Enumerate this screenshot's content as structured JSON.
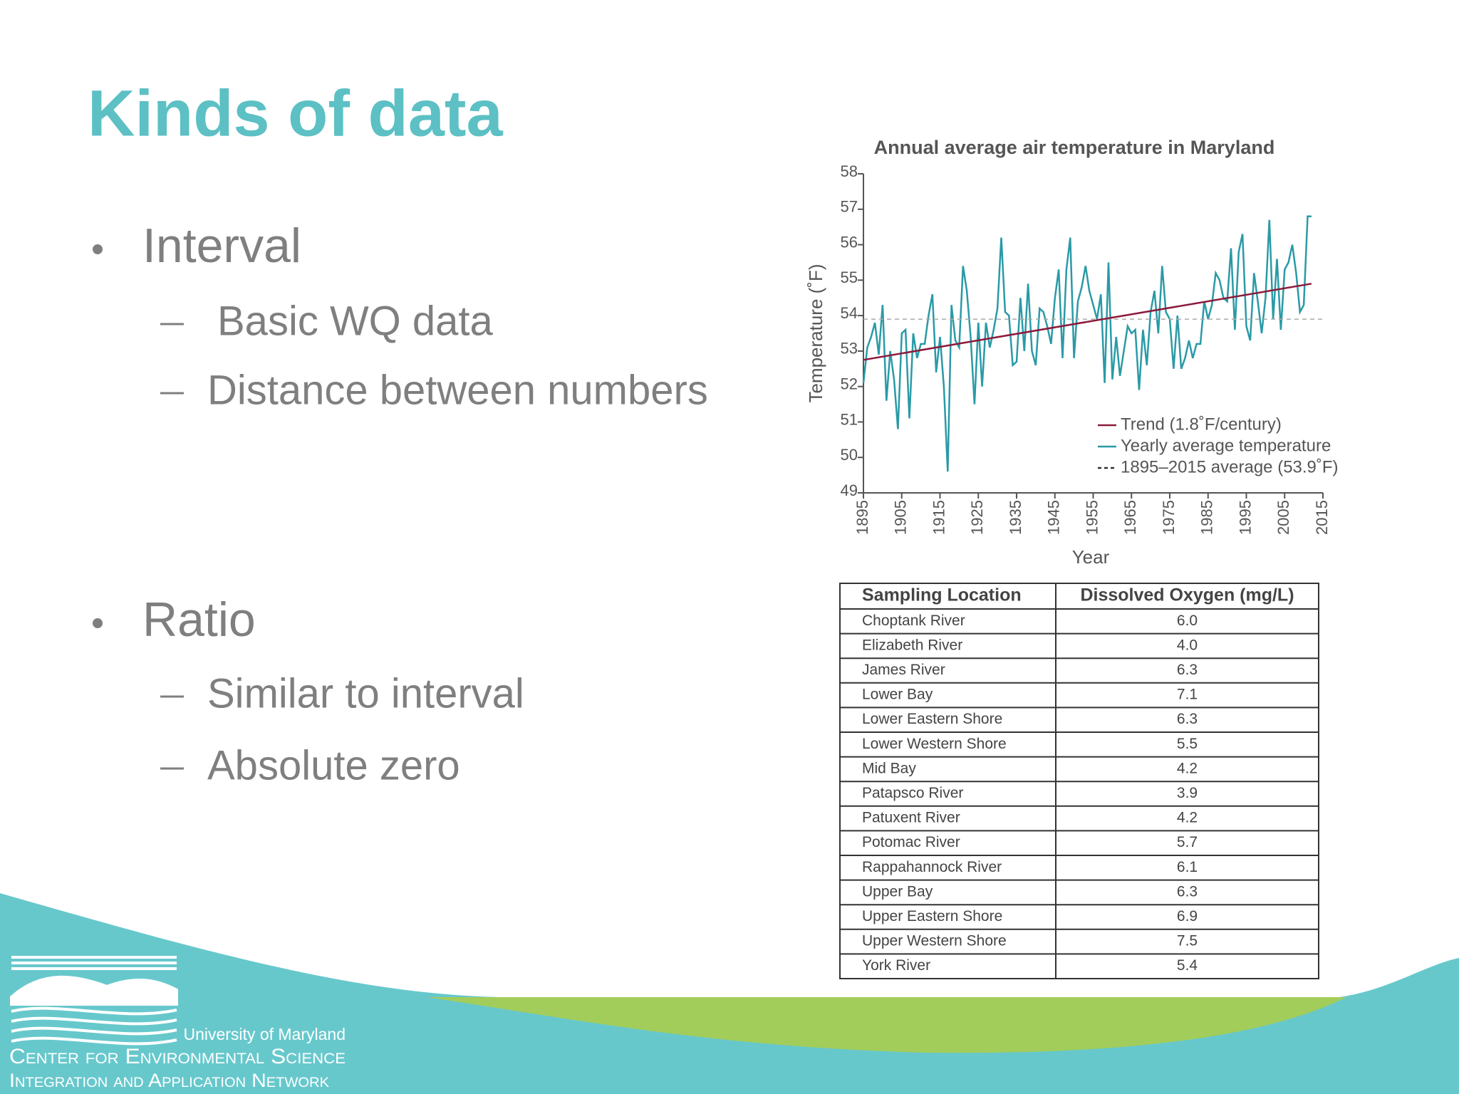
{
  "title": "Kinds of data",
  "bullets": [
    {
      "text": "Interval",
      "sub": [
        "Basic WQ data",
        "Distance between numbers"
      ]
    },
    {
      "text": "Ratio",
      "sub": [
        "Similar to interval",
        "Absolute zero"
      ]
    }
  ],
  "chart_data": {
    "type": "line",
    "title": "Annual average air temperature in Maryland",
    "x_label": "Year",
    "y_label": "Temperature (˚F)",
    "xlim": [
      1895,
      2015
    ],
    "xticks": [
      1895,
      1905,
      1915,
      1925,
      1935,
      1945,
      1955,
      1965,
      1975,
      1985,
      1995,
      2005,
      2015
    ],
    "ylim": [
      49,
      58
    ],
    "yticks": [
      49,
      50,
      51,
      52,
      53,
      54,
      55,
      56,
      57,
      58
    ],
    "series": [
      {
        "name": "Trend (1.8˚F/century)",
        "color": "#8b1a3a",
        "x": [
          1895,
          2012
        ],
        "values": [
          52.75,
          54.9
        ]
      },
      {
        "name": "Yearly average temperature",
        "color": "#2a9aa6",
        "x": [
          1895,
          1896,
          1897,
          1898,
          1899,
          1900,
          1901,
          1902,
          1903,
          1904,
          1905,
          1906,
          1907,
          1908,
          1909,
          1910,
          1911,
          1912,
          1913,
          1914,
          1915,
          1916,
          1917,
          1918,
          1919,
          1920,
          1921,
          1922,
          1923,
          1924,
          1925,
          1926,
          1927,
          1928,
          1929,
          1930,
          1931,
          1932,
          1933,
          1934,
          1935,
          1936,
          1937,
          1938,
          1939,
          1940,
          1941,
          1942,
          1943,
          1944,
          1945,
          1946,
          1947,
          1948,
          1949,
          1950,
          1951,
          1952,
          1953,
          1954,
          1955,
          1956,
          1957,
          1958,
          1959,
          1960,
          1961,
          1962,
          1963,
          1964,
          1965,
          1966,
          1967,
          1968,
          1969,
          1970,
          1971,
          1972,
          1973,
          1974,
          1975,
          1976,
          1977,
          1978,
          1979,
          1980,
          1981,
          1982,
          1983,
          1984,
          1985,
          1986,
          1987,
          1988,
          1989,
          1990,
          1991,
          1992,
          1993,
          1994,
          1995,
          1996,
          1997,
          1998,
          1999,
          2000,
          2001,
          2002,
          2003,
          2004,
          2005,
          2006,
          2007,
          2008,
          2009,
          2010,
          2011,
          2012
        ],
        "values": [
          52.1,
          53.1,
          53.4,
          53.8,
          52.9,
          54.3,
          51.6,
          53.0,
          52.2,
          50.8,
          53.5,
          53.6,
          51.1,
          53.5,
          52.8,
          53.2,
          53.2,
          54.0,
          54.6,
          52.4,
          53.4,
          52.0,
          49.6,
          54.3,
          53.3,
          53.1,
          55.4,
          54.7,
          53.4,
          51.5,
          53.8,
          52.0,
          53.8,
          53.1,
          53.6,
          54.2,
          56.2,
          54.1,
          54.0,
          52.6,
          52.7,
          54.5,
          53.0,
          54.9,
          53.0,
          52.6,
          54.2,
          54.1,
          53.7,
          53.2,
          54.5,
          55.3,
          52.8,
          55.3,
          56.2,
          52.8,
          54.4,
          54.8,
          55.4,
          54.7,
          54.3,
          53.9,
          54.6,
          52.1,
          55.5,
          52.2,
          53.4,
          52.3,
          53.0,
          53.7,
          53.5,
          53.6,
          51.9,
          53.6,
          52.6,
          54.1,
          54.7,
          53.5,
          55.4,
          54.1,
          53.9,
          52.5,
          54.0,
          52.5,
          52.8,
          53.3,
          52.8,
          53.2,
          53.2,
          54.4,
          53.9,
          54.3,
          55.2,
          55.0,
          54.5,
          54.4,
          55.9,
          53.6,
          55.8,
          56.3,
          53.7,
          53.3,
          55.2,
          54.4,
          53.5,
          54.5,
          56.7,
          53.9,
          55.6,
          53.6,
          55.3,
          55.5,
          56.0,
          55.2,
          54.1,
          54.3,
          56.8,
          56.8
        ]
      },
      {
        "name": "1895–2015 average (53.9˚F)",
        "color": "#aaaaaa",
        "dashed": true,
        "x": [
          1895,
          2015
        ],
        "values": [
          53.9,
          53.9
        ]
      }
    ]
  },
  "table": {
    "header": [
      "Sampling Location",
      "Dissolved Oxygen (mg/L)"
    ],
    "rows": [
      [
        "Choptank River",
        "6.0"
      ],
      [
        "Elizabeth River",
        "4.0"
      ],
      [
        "James River",
        "6.3"
      ],
      [
        "Lower Bay",
        "7.1"
      ],
      [
        "Lower Eastern Shore",
        "6.3"
      ],
      [
        "Lower Western Shore",
        "5.5"
      ],
      [
        "Mid Bay",
        "4.2"
      ],
      [
        "Patapsco River",
        "3.9"
      ],
      [
        "Patuxent River",
        "4.2"
      ],
      [
        "Potomac River",
        "5.7"
      ],
      [
        "Rappahannock River",
        "6.1"
      ],
      [
        "Upper Bay",
        "6.3"
      ],
      [
        "Upper Eastern Shore",
        "6.9"
      ],
      [
        "Upper Western Shore",
        "7.5"
      ],
      [
        "York River",
        "5.4"
      ]
    ]
  },
  "logo": {
    "line1": "University of Maryland",
    "line2": "Center for Environmental Science",
    "line3": "Integration and Application Network"
  }
}
